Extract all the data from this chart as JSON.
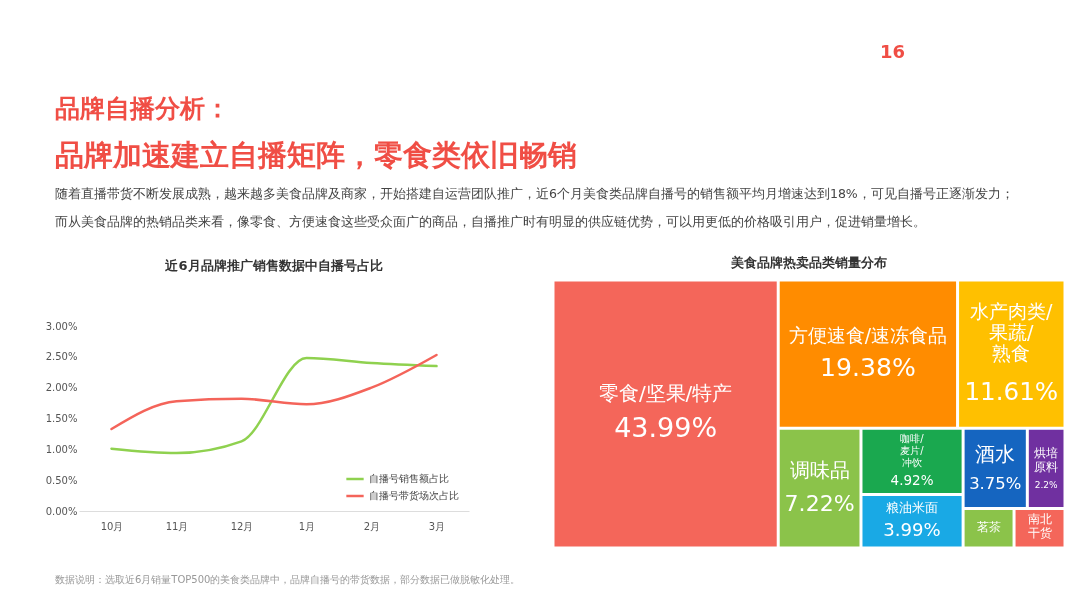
{
  "chart_data": [
    {
      "type": "other",
      "title": "品牌自播分析：",
      "subtitle": "品牌加速建立自播矩阵，零食类依旧畅销",
      "annotations": [
        "16",
        "随着直播带货不断发展成熟，越来越多美食品牌及商家，开始搭建自运营团队推广，近6个月美食类品牌自播号的销售额平均月增速达到18%，可见自播号正逐渐发力；",
        "而从美食品牌的热销品类来看，像零食、方便速食这些受众面广的商品，自播推广时有明显的供应链优势，可以用更低的价格吸引用户，促进销量增长。",
        "数据说明：选取近6月销量TOP500的美食类品牌中，品牌自播号的带货数据，部分数据已做脱敏化处理。"
      ]
    },
    {
      "type": "line",
      "title": "近6月品牌推广销售数据中自播号占比",
      "categories": [
        "10月",
        "11月",
        "12月",
        "1月",
        "2月",
        "3月"
      ],
      "series": [
        {
          "name": "自播号销售额占比",
          "color": "#8fd14f",
          "values": [
            1.01,
            0.94,
            1.13,
            2.48,
            2.4,
            2.35
          ]
        },
        {
          "name": "自播号带货场次占比",
          "color": "#f4645a",
          "values": [
            1.33,
            1.78,
            1.82,
            1.73,
            2.0,
            2.53
          ]
        }
      ],
      "ylim": [
        0,
        3
      ],
      "yticks": [
        {
          "value": 0,
          "label": "0.00%"
        },
        {
          "value": 0.5,
          "label": "0.50%"
        },
        {
          "value": 1,
          "label": "1.00%"
        },
        {
          "value": 1.5,
          "label": "1.50%"
        },
        {
          "value": 2,
          "label": "2.00%"
        },
        {
          "value": 2.5,
          "label": "2.50%"
        },
        {
          "value": 3,
          "label": "3.00%"
        }
      ],
      "legend": "bottom right",
      "marker": "none",
      "line_style": "solid",
      "grid": false
    },
    {
      "type": "other",
      "title": "美食品牌热卖品类销量分布",
      "categories": [
        "零食/坚果/特产",
        "方便速食/速冻食品",
        "水产肉类/果蔬/熟食",
        "调味品",
        "咖啡/麦片/冲饮",
        "粮油米面",
        "酒水",
        "烘培原料",
        "茗茶",
        "南北干货"
      ],
      "values": [
        43.99,
        19.38,
        11.61,
        7.22,
        4.92,
        3.99,
        3.75,
        2.2,
        null,
        null
      ],
      "value_labels": [
        "43.99%",
        "19.38%",
        "11.61%",
        "7.22%",
        "4.92%",
        "3.99%",
        "3.75%",
        "2.2%",
        null,
        null
      ],
      "colors": [
        "#f4665a",
        "#ff8c00",
        "#ffc000",
        "#8bc34a",
        "#1aa84f",
        "#19a9e5",
        "#1565c0",
        "#7030a0",
        "#8bc34a",
        "#f4665a"
      ]
    }
  ]
}
